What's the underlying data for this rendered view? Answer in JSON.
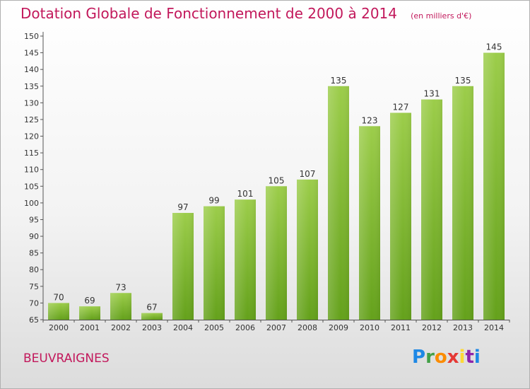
{
  "header": {
    "title": "Dotation Globale de Fonctionnement de 2000 à 2014",
    "subtitle": "(en milliers d'€)"
  },
  "footer": {
    "commune": "BEUVRAIGNES",
    "logo": {
      "letters": [
        "P",
        "r",
        "o",
        "x",
        "i",
        "t",
        "i"
      ],
      "colors": [
        "#1e88e5",
        "#43a047",
        "#fb8c00",
        "#e53935",
        "#fdd835",
        "#8e24aa",
        "#1e88e5"
      ]
    }
  },
  "chart_data": {
    "type": "bar",
    "categories": [
      "2000",
      "2001",
      "2002",
      "2003",
      "2004",
      "2005",
      "2006",
      "2007",
      "2008",
      "2009",
      "2010",
      "2011",
      "2012",
      "2013",
      "2014"
    ],
    "values": [
      70,
      69,
      73,
      67,
      97,
      99,
      101,
      105,
      107,
      135,
      123,
      127,
      131,
      135,
      145
    ],
    "data_labels": [
      "70",
      "69",
      "73",
      "67",
      "97",
      "99",
      "101",
      "105",
      "107",
      "135",
      "123",
      "127",
      "131",
      "135",
      "145"
    ],
    "ylim": [
      65,
      150
    ],
    "yticks": [
      65,
      70,
      75,
      80,
      85,
      90,
      95,
      100,
      105,
      110,
      115,
      120,
      125,
      130,
      135,
      140,
      145,
      150
    ],
    "grid": false,
    "bar_color_top": "#9ccd4a",
    "bar_color_bottom": "#64a11b",
    "title_color": "#c2185b"
  }
}
